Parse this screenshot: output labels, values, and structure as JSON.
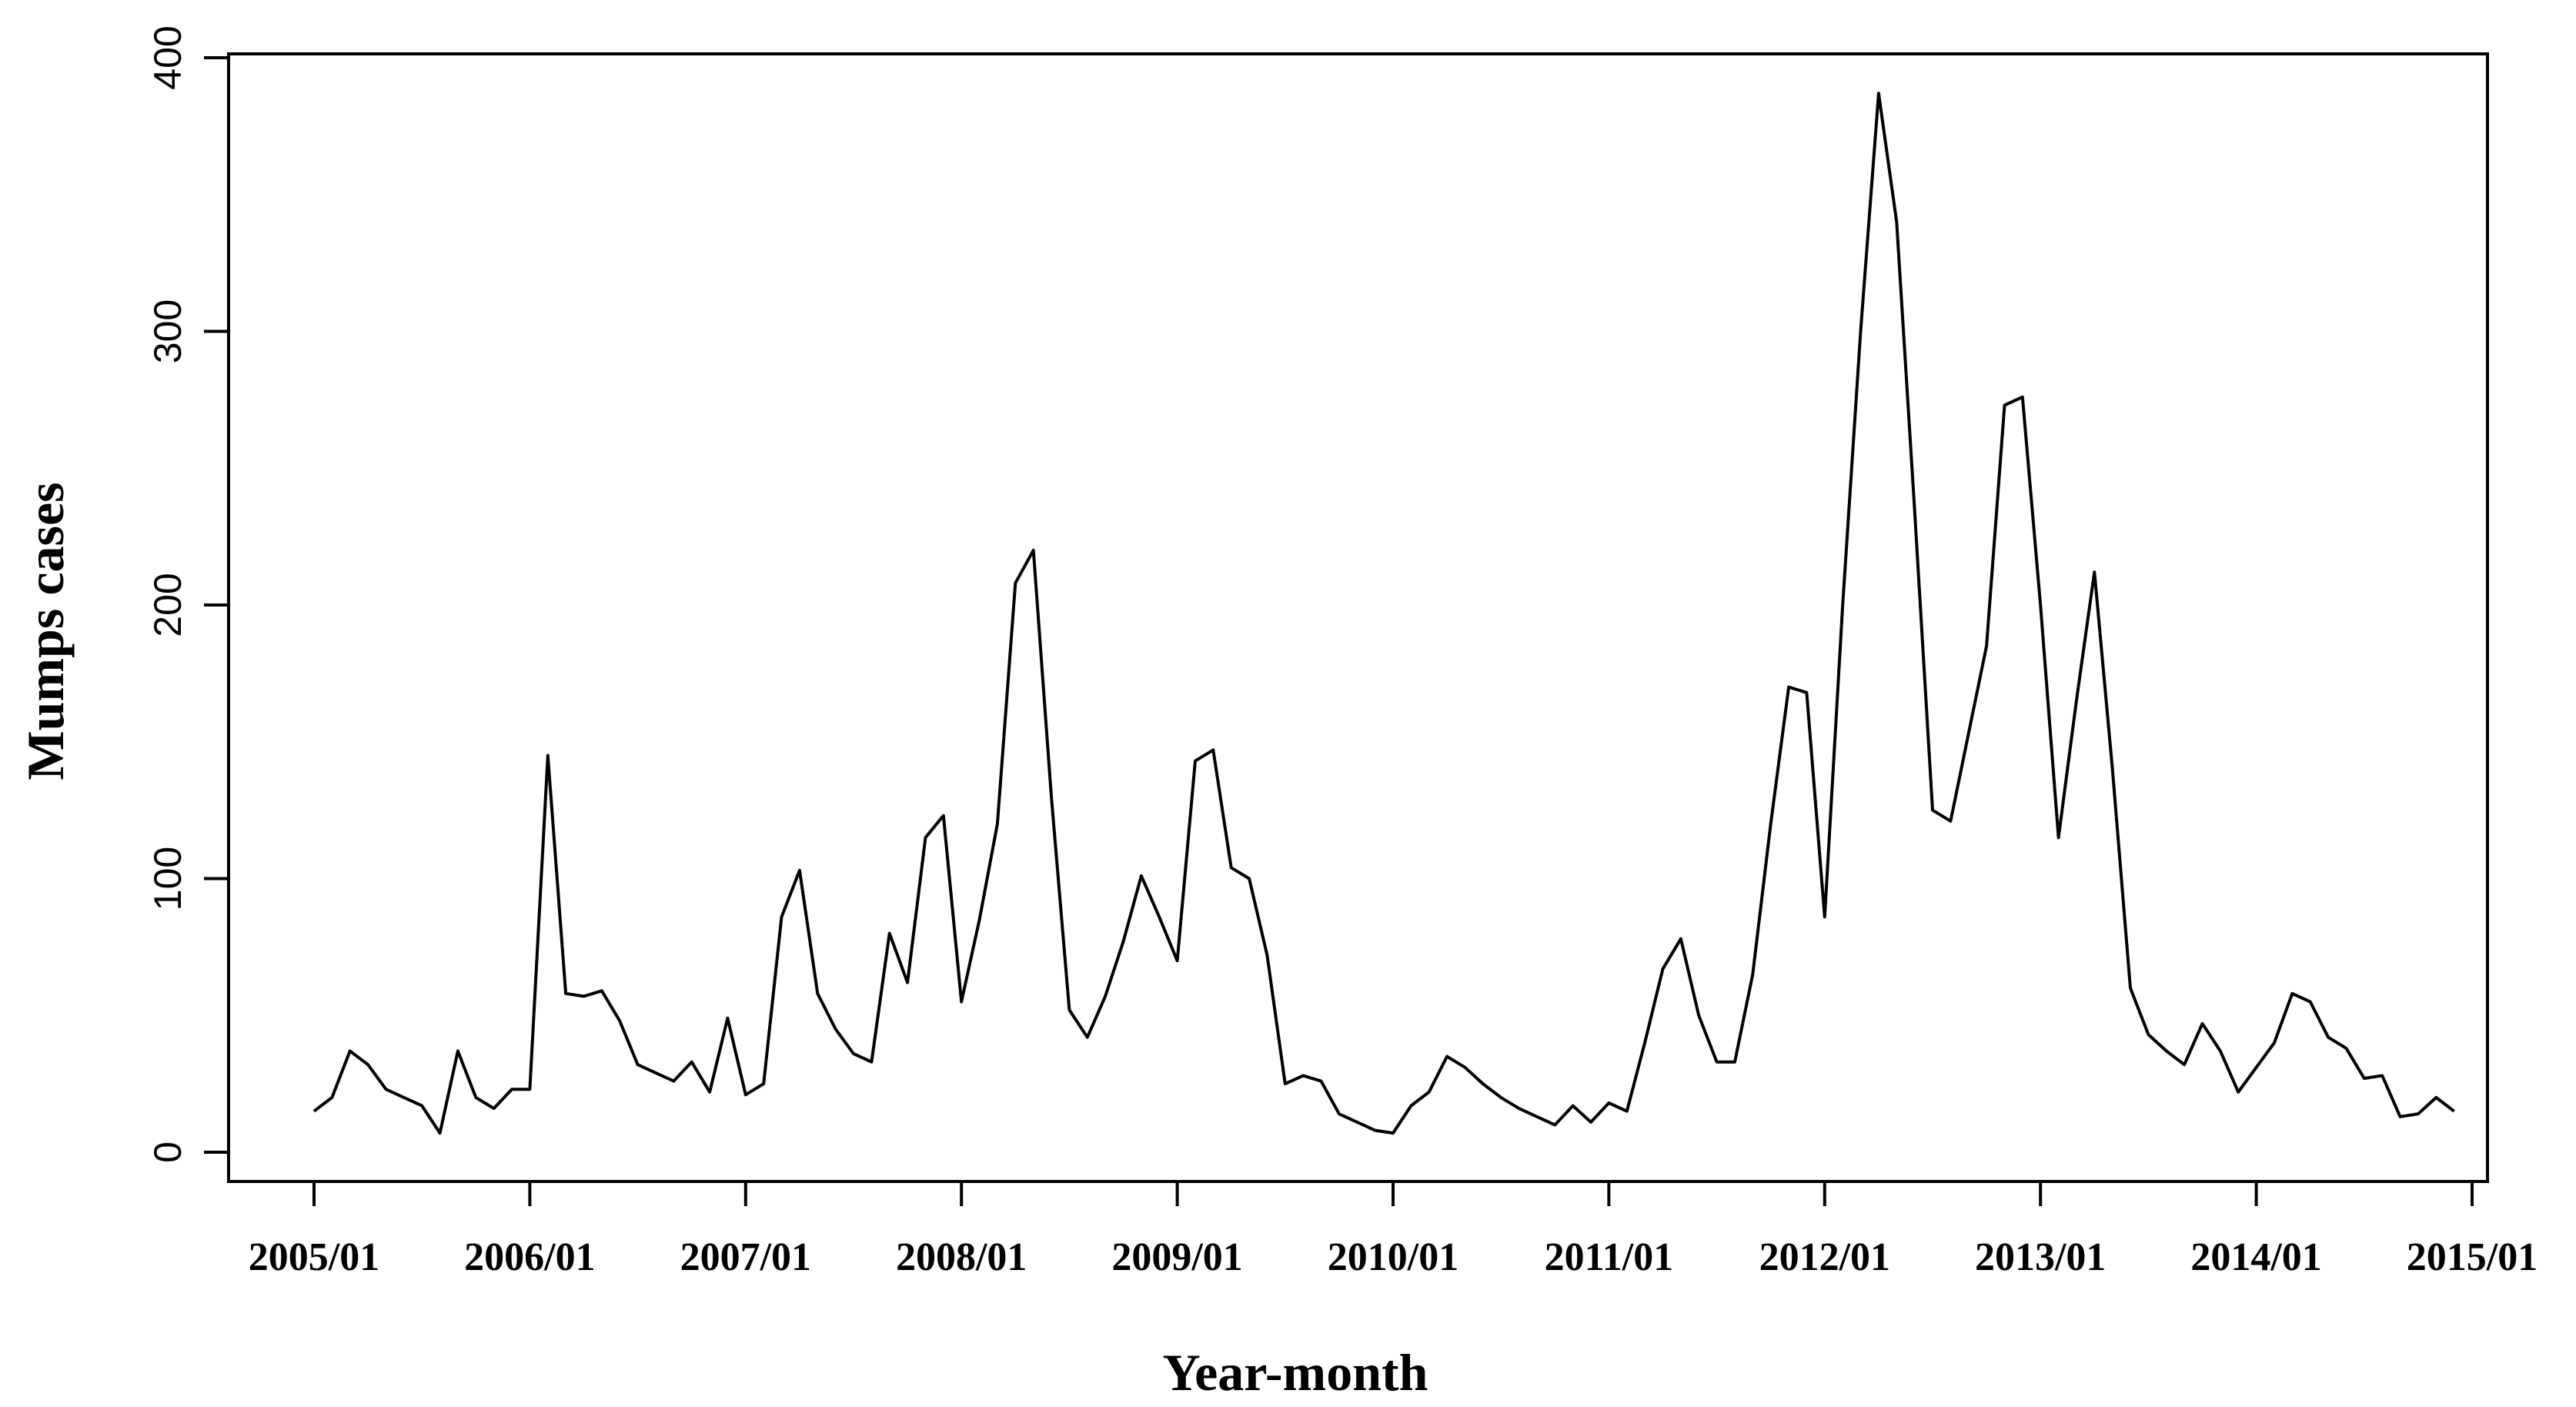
{
  "chart_data": {
    "type": "line",
    "title": "",
    "xlabel": "Year-month",
    "ylabel": "Mumps cases",
    "ylim": [
      0,
      400
    ],
    "y_ticks": [
      0,
      100,
      200,
      300,
      400
    ],
    "x_tick_labels": [
      "2005/01",
      "2006/01",
      "2007/01",
      "2008/01",
      "2009/01",
      "2010/01",
      "2011/01",
      "2012/01",
      "2013/01",
      "2014/01",
      "2015/01"
    ],
    "grid": false,
    "legend": "none",
    "line_color": "#000000",
    "series": [
      {
        "x": [
          "2005/01",
          "2005/02",
          "2005/03",
          "2005/04",
          "2005/05",
          "2005/06",
          "2005/07",
          "2005/08",
          "2005/09",
          "2005/10",
          "2005/11",
          "2005/12",
          "2006/01",
          "2006/02",
          "2006/03",
          "2006/04",
          "2006/05",
          "2006/06",
          "2006/07",
          "2006/08",
          "2006/09",
          "2006/10",
          "2006/11",
          "2006/12",
          "2007/01",
          "2007/02",
          "2007/03",
          "2007/04",
          "2007/05",
          "2007/06",
          "2007/07",
          "2007/08",
          "2007/09",
          "2007/10",
          "2007/11",
          "2007/12",
          "2008/01",
          "2008/02",
          "2008/03",
          "2008/04",
          "2008/05",
          "2008/06",
          "2008/07",
          "2008/08",
          "2008/09",
          "2008/10",
          "2008/11",
          "2008/12",
          "2009/01",
          "2009/02",
          "2009/03",
          "2009/04",
          "2009/05",
          "2009/06",
          "2009/07",
          "2009/08",
          "2009/09",
          "2009/10",
          "2009/11",
          "2009/12",
          "2010/01",
          "2010/02",
          "2010/03",
          "2010/04",
          "2010/05",
          "2010/06",
          "2010/07",
          "2010/08",
          "2010/09",
          "2010/10",
          "2010/11",
          "2010/12",
          "2011/01",
          "2011/02",
          "2011/03",
          "2011/04",
          "2011/05",
          "2011/06",
          "2011/07",
          "2011/08",
          "2011/09",
          "2011/10",
          "2011/11",
          "2011/12",
          "2012/01",
          "2012/02",
          "2012/03",
          "2012/04",
          "2012/05",
          "2012/06",
          "2012/07",
          "2012/08",
          "2012/09",
          "2012/10",
          "2012/11",
          "2012/12",
          "2013/01",
          "2013/02",
          "2013/03",
          "2013/04",
          "2013/05",
          "2013/06",
          "2013/07",
          "2013/08",
          "2013/09",
          "2013/10",
          "2013/11",
          "2013/12",
          "2014/01",
          "2014/02",
          "2014/03",
          "2014/04",
          "2014/05",
          "2014/06",
          "2014/07",
          "2014/08",
          "2014/09",
          "2014/10",
          "2014/11",
          "2014/12"
        ],
        "values": [
          15,
          20,
          37,
          32,
          23,
          20,
          17,
          7,
          37,
          20,
          16,
          23,
          23,
          145,
          58,
          57,
          59,
          48,
          32,
          29,
          26,
          33,
          22,
          49,
          21,
          25,
          86,
          103,
          58,
          45,
          36,
          33,
          80,
          62,
          115,
          123,
          55,
          85,
          120,
          208,
          220,
          130,
          52,
          42,
          57,
          77,
          101,
          86,
          70,
          143,
          147,
          104,
          100,
          72,
          25,
          28,
          26,
          14,
          11,
          8,
          7,
          17,
          22,
          35,
          31,
          25,
          20,
          16,
          13,
          10,
          17,
          11,
          18,
          15,
          40,
          67,
          78,
          50,
          33,
          33,
          65,
          120,
          170,
          168,
          86,
          200,
          300,
          387,
          340,
          235,
          125,
          121,
          153,
          185,
          273,
          276,
          200,
          115,
          165,
          212,
          140,
          60,
          43,
          37,
          32,
          47,
          37,
          22,
          31,
          40,
          58,
          55,
          42,
          38,
          27,
          28,
          13,
          14,
          20,
          15
        ]
      }
    ]
  }
}
